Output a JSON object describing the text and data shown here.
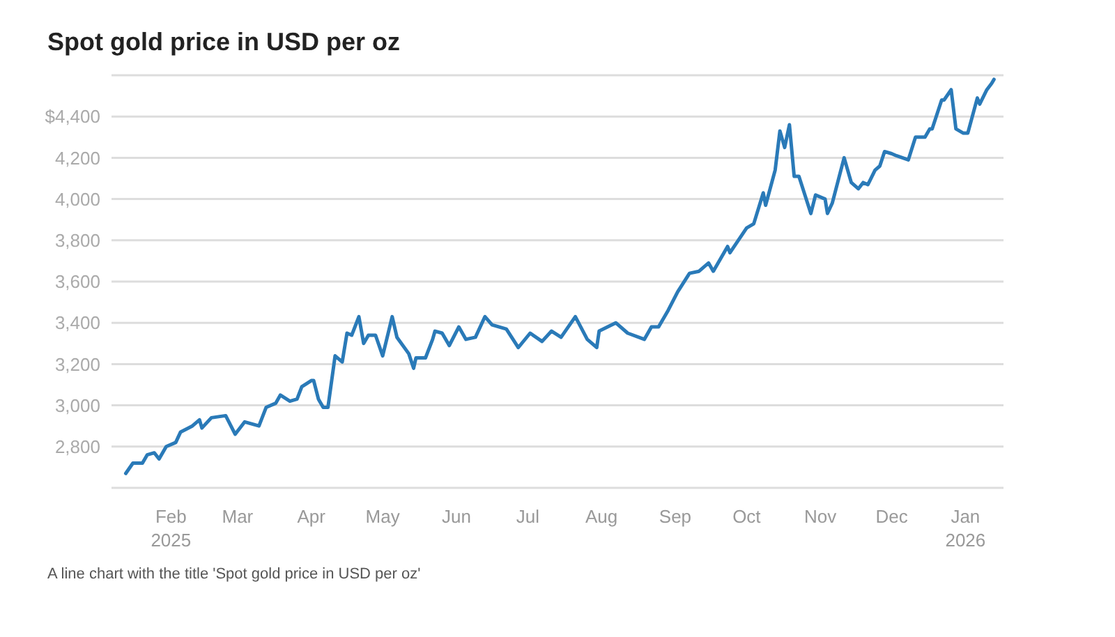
{
  "chart_data": {
    "type": "line",
    "title": "Spot gold price in USD per oz",
    "annotations": [
      "A line chart with the title 'Spot gold price in USD per oz'"
    ],
    "x": [
      "2025-01-13",
      "2025-01-16",
      "2025-01-20",
      "2025-01-22",
      "2025-01-25",
      "2025-01-27",
      "2025-01-30",
      "2025-02-03",
      "2025-02-05",
      "2025-02-10",
      "2025-02-13",
      "2025-02-14",
      "2025-02-18",
      "2025-02-24",
      "2025-02-28",
      "2025-03-04",
      "2025-03-10",
      "2025-03-13",
      "2025-03-17",
      "2025-03-19",
      "2025-03-23",
      "2025-03-26",
      "2025-03-28",
      "2025-04-01",
      "2025-04-02",
      "2025-04-04",
      "2025-04-06",
      "2025-04-08",
      "2025-04-11",
      "2025-04-14",
      "2025-04-16",
      "2025-04-18",
      "2025-04-21",
      "2025-04-23",
      "2025-04-25",
      "2025-04-28",
      "2025-05-01",
      "2025-05-05",
      "2025-05-07",
      "2025-05-12",
      "2025-05-14",
      "2025-05-15",
      "2025-05-19",
      "2025-05-22",
      "2025-05-23",
      "2025-05-26",
      "2025-05-29",
      "2025-06-02",
      "2025-06-05",
      "2025-06-09",
      "2025-06-13",
      "2025-06-16",
      "2025-06-22",
      "2025-06-27",
      "2025-07-02",
      "2025-07-07",
      "2025-07-11",
      "2025-07-15",
      "2025-07-21",
      "2025-07-26",
      "2025-07-30",
      "2025-07-31",
      "2025-08-07",
      "2025-08-12",
      "2025-08-19",
      "2025-08-22",
      "2025-08-25",
      "2025-08-29",
      "2025-09-02",
      "2025-09-07",
      "2025-09-11",
      "2025-09-15",
      "2025-09-17",
      "2025-09-23",
      "2025-09-24",
      "2025-10-01",
      "2025-10-04",
      "2025-10-08",
      "2025-10-09",
      "2025-10-13",
      "2025-10-15",
      "2025-10-17",
      "2025-10-19",
      "2025-10-21",
      "2025-10-23",
      "2025-10-28",
      "2025-10-30",
      "2025-11-03",
      "2025-11-04",
      "2025-11-06",
      "2025-11-11",
      "2025-11-14",
      "2025-11-17",
      "2025-11-19",
      "2025-11-21",
      "2025-11-24",
      "2025-11-26",
      "2025-11-28",
      "2025-12-01",
      "2025-12-03",
      "2025-12-08",
      "2025-12-11",
      "2025-12-15",
      "2025-12-17",
      "2025-12-18",
      "2025-12-22",
      "2025-12-23",
      "2025-12-26",
      "2025-12-28",
      "2025-12-31",
      "2026-01-02",
      "2026-01-06",
      "2026-01-07",
      "2026-01-10",
      "2026-01-12",
      "2026-01-13"
    ],
    "series": [
      {
        "color": "#2a7ab8",
        "values": [
          2670,
          2720,
          2720,
          2760,
          2770,
          2740,
          2800,
          2820,
          2870,
          2900,
          2930,
          2890,
          2940,
          2950,
          2860,
          2920,
          2900,
          2990,
          3010,
          3050,
          3020,
          3030,
          3090,
          3120,
          3120,
          3030,
          2990,
          2990,
          3240,
          3210,
          3350,
          3340,
          3430,
          3300,
          3340,
          3340,
          3240,
          3430,
          3330,
          3250,
          3180,
          3230,
          3230,
          3320,
          3360,
          3350,
          3290,
          3380,
          3320,
          3330,
          3430,
          3390,
          3370,
          3280,
          3350,
          3310,
          3360,
          3330,
          3430,
          3320,
          3280,
          3360,
          3400,
          3350,
          3320,
          3380,
          3380,
          3460,
          3550,
          3640,
          3650,
          3690,
          3650,
          3770,
          3740,
          3860,
          3880,
          4030,
          3970,
          4140,
          4330,
          4250,
          4360,
          4110,
          4110,
          3930,
          4020,
          4000,
          3930,
          3980,
          4200,
          4080,
          4050,
          4080,
          4070,
          4140,
          4160,
          4230,
          4220,
          4210,
          4190,
          4300,
          4300,
          4340,
          4340,
          4480,
          4480,
          4530,
          4340,
          4320,
          4320,
          4490,
          4460,
          4530,
          4560,
          4580
        ]
      }
    ],
    "xlim": [
      "2025-01-07",
      "2026-01-17"
    ],
    "xticks": [
      {
        "value": "2025-02-01",
        "label": "Feb\n2025"
      },
      {
        "value": "2025-03-01",
        "label": "Mar"
      },
      {
        "value": "2025-04-01",
        "label": "Apr"
      },
      {
        "value": "2025-05-01",
        "label": "May"
      },
      {
        "value": "2025-06-01",
        "label": "Jun"
      },
      {
        "value": "2025-07-01",
        "label": "Jul"
      },
      {
        "value": "2025-08-01",
        "label": "Aug"
      },
      {
        "value": "2025-09-01",
        "label": "Sep"
      },
      {
        "value": "2025-10-01",
        "label": "Oct"
      },
      {
        "value": "2025-11-01",
        "label": "Nov"
      },
      {
        "value": "2025-12-01",
        "label": "Dec"
      },
      {
        "value": "2026-01-01",
        "label": "Jan\n2026"
      }
    ],
    "ylim": [
      2600,
      4600
    ],
    "yticks": [
      {
        "value": 2800,
        "label": "2,800"
      },
      {
        "value": 3000,
        "label": "3,000"
      },
      {
        "value": 3200,
        "label": "3,200"
      },
      {
        "value": 3400,
        "label": "3,400"
      },
      {
        "value": 3600,
        "label": "3,600"
      },
      {
        "value": 3800,
        "label": "3,800"
      },
      {
        "value": 4000,
        "label": "4,000"
      },
      {
        "value": 4200,
        "label": "4,200"
      },
      {
        "value": 4400,
        "label": "$4,400"
      }
    ],
    "grid": "y"
  }
}
